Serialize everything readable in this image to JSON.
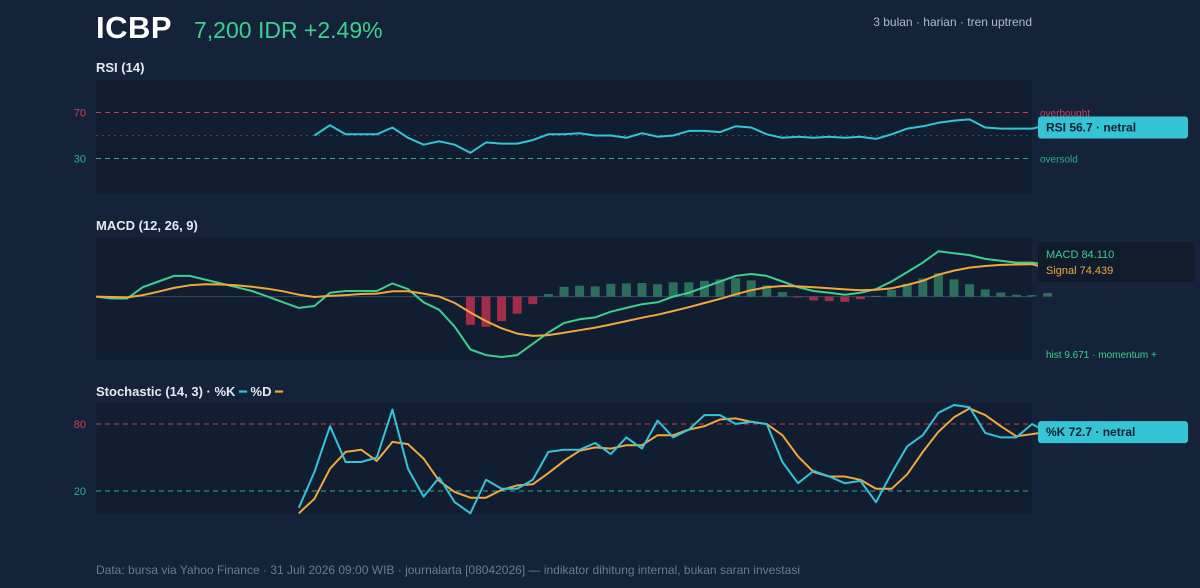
{
  "header": {
    "ticker": "ICBP",
    "price": "7,200 IDR +2.49%",
    "meta": "3 bulan · harian · tren uptrend"
  },
  "footer": "Data: bursa via Yahoo Finance · 31 Juli 2026 09:00 WIB · journalarta [08042026] — indikator dihitung internal, bukan saran investasi",
  "colors": {
    "background": "#15233a",
    "panel": "#111d30",
    "rsi_line": "#35c4d6",
    "macd_line": "#3ecf8e",
    "signal_line": "#f0a83c",
    "hist_pos": "#2f7d63",
    "hist_neg": "#b3304d",
    "overbought": "#c94059",
    "oversold": "#2fae8a",
    "stoch_k": "#35c4d6",
    "stoch_d": "#f0a83c"
  },
  "chart_data": [
    {
      "type": "line",
      "title": "RSI (14)",
      "ylim": [
        0,
        100
      ],
      "yticks": [
        "70",
        "30"
      ],
      "levels": {
        "overbought": 70,
        "oversold": 30,
        "mid": 50
      },
      "overbought_label": "overbought",
      "oversold_label": "oversold",
      "x_start": 14,
      "series": [
        {
          "values": [
            50,
            59,
            51,
            51,
            51,
            57,
            48,
            42,
            45,
            42,
            35,
            44,
            43,
            43,
            46,
            51,
            51,
            52,
            50,
            50,
            48,
            52,
            49,
            50,
            54,
            54,
            53,
            58,
            57,
            51,
            48,
            49,
            48,
            49,
            48,
            49,
            47,
            51,
            56,
            58,
            61,
            63,
            64,
            57,
            56,
            56,
            56,
            59,
            57
          ]
        }
      ],
      "last_label": "RSI 56.7 · netral"
    },
    {
      "type": "line",
      "title": "MACD (12, 26, 9)",
      "ylim": [
        -160,
        150
      ],
      "x_start": 0,
      "series": [
        {
          "name": "MACD",
          "values": [
            0,
            -5,
            -5,
            25,
            40,
            55,
            55,
            45,
            35,
            25,
            15,
            0,
            -15,
            -30,
            -25,
            10,
            15,
            15,
            15,
            35,
            20,
            -15,
            -35,
            -80,
            -140,
            -155,
            -160,
            -155,
            -125,
            -95,
            -70,
            -60,
            -55,
            -40,
            -30,
            -20,
            -15,
            0,
            10,
            25,
            40,
            55,
            60,
            55,
            40,
            25,
            15,
            10,
            5,
            10,
            20,
            40,
            65,
            90,
            120,
            115,
            110,
            100,
            95,
            90,
            90,
            84.11
          ]
        },
        {
          "name": "Signal",
          "values": [
            0,
            -1,
            -2,
            4,
            13,
            23,
            30,
            33,
            32,
            30,
            26,
            21,
            14,
            5,
            -1,
            2,
            4,
            7,
            8,
            14,
            14,
            8,
            0,
            -17,
            -42,
            -65,
            -84,
            -98,
            -104,
            -102,
            -96,
            -89,
            -82,
            -74,
            -65,
            -56,
            -48,
            -38,
            -28,
            -17,
            -6,
            6,
            17,
            25,
            28,
            27,
            25,
            22,
            19,
            17,
            18,
            22,
            31,
            42,
            58,
            69,
            77,
            81,
            84,
            85,
            86,
            74.439
          ]
        }
      ],
      "histogram": [
        0,
        0,
        0,
        0,
        0,
        0,
        0,
        0,
        0,
        0,
        0,
        0,
        0,
        0,
        0,
        0,
        0,
        0,
        0,
        0,
        0,
        0,
        0,
        0,
        -75,
        -80,
        -65,
        -45,
        -20,
        7,
        26,
        29,
        27,
        34,
        35,
        36,
        33,
        38,
        38,
        42,
        46,
        49,
        43,
        30,
        12,
        -2,
        -10,
        -12,
        -14,
        -7,
        2,
        18,
        34,
        48,
        62,
        46,
        33,
        19,
        11,
        5,
        4,
        9.671
      ],
      "macd_label": "MACD 84.110",
      "signal_label": "Signal 74.439",
      "hist_label": "hist 9.671 · momentum +"
    },
    {
      "type": "line",
      "title": "Stochastic (14, 3) · %K",
      "legend_d": "%D",
      "ylim": [
        0,
        100
      ],
      "yticks": [
        "80",
        "20"
      ],
      "levels": {
        "overbought": 80,
        "oversold": 20
      },
      "x_start": 13,
      "series": [
        {
          "name": "%K",
          "values": [
            5,
            37,
            78,
            46,
            46,
            50,
            93,
            40,
            15,
            32,
            10,
            0,
            30,
            22,
            22,
            30,
            55,
            57,
            57,
            63,
            53,
            68,
            58,
            83,
            68,
            75,
            88,
            88,
            80,
            82,
            80,
            46,
            27,
            38,
            33,
            27,
            29,
            10,
            36,
            60,
            70,
            90,
            97,
            95,
            72,
            68,
            68,
            80,
            72.7
          ]
        },
        {
          "name": "%D",
          "values": [
            0,
            13,
            40,
            55,
            57,
            47,
            64,
            62,
            49,
            29,
            19,
            14,
            14,
            21,
            25,
            26,
            36,
            47,
            56,
            59,
            58,
            61,
            61,
            70,
            70,
            75,
            78,
            84,
            85,
            82,
            80,
            70,
            51,
            37,
            33,
            33,
            30,
            22,
            22,
            35,
            55,
            73,
            86,
            94,
            88,
            78,
            69,
            71,
            73
          ]
        }
      ],
      "last_label": "%K 72.7 · netral"
    }
  ]
}
